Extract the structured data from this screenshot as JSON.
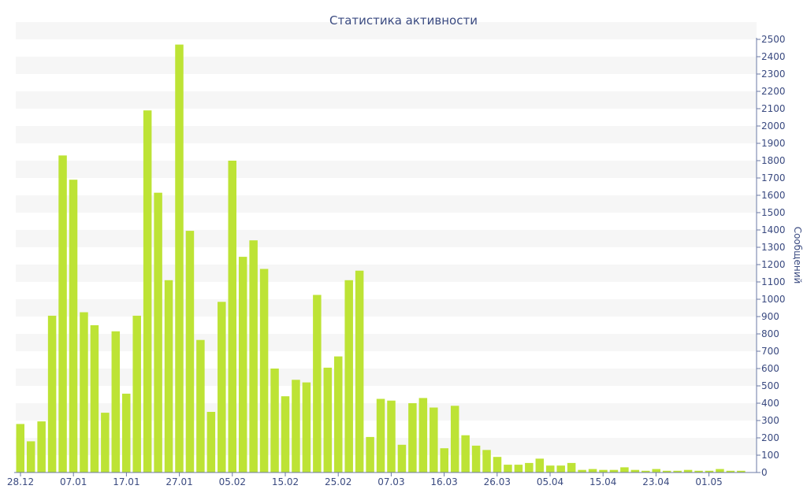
{
  "chart_data": {
    "type": "bar",
    "title": "Статистика активности",
    "ylabel": "Сообщений",
    "xlabel": "",
    "ylim": [
      0,
      2500
    ],
    "ytick_step": 100,
    "legend": "none",
    "grid": "horizontal alternating bands",
    "x_tick_labels": [
      "28.12",
      "07.01",
      "17.01",
      "27.01",
      "05.02",
      "15.02",
      "25.02",
      "07.03",
      "16.03",
      "26.03",
      "05.04",
      "15.04",
      "23.04",
      "01.05"
    ],
    "colors": {
      "bar": "#bde335",
      "text": "#3a4a80",
      "band": "#f6f6f6",
      "axis": "#6b7aa6"
    },
    "values": [
      280,
      180,
      295,
      905,
      1830,
      1690,
      925,
      850,
      345,
      815,
      455,
      905,
      2090,
      1615,
      1110,
      2470,
      1395,
      765,
      350,
      985,
      1800,
      1245,
      1340,
      1175,
      600,
      440,
      535,
      520,
      1025,
      605,
      670,
      1110,
      1165,
      205,
      425,
      415,
      160,
      400,
      430,
      375,
      140,
      385,
      215,
      155,
      130,
      90,
      45,
      45,
      55,
      80,
      40,
      40,
      55,
      15,
      20,
      15,
      15,
      30,
      15,
      10,
      20,
      10,
      10,
      15,
      10,
      10,
      20,
      10,
      10
    ]
  }
}
